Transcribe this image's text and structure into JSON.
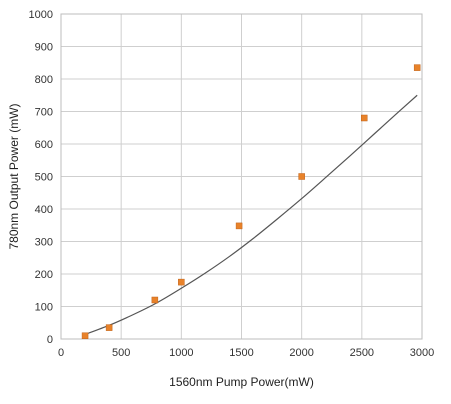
{
  "chart_data": {
    "type": "scatter",
    "title": "",
    "xlabel": "1560nm Pump Power(mW)",
    "ylabel": "780nm Output Power (mW)",
    "xlim": [
      0,
      3000
    ],
    "ylim": [
      0,
      1000
    ],
    "x_ticks": [
      0,
      500,
      1000,
      1500,
      2000,
      2500,
      3000
    ],
    "y_ticks": [
      0,
      100,
      200,
      300,
      400,
      500,
      600,
      700,
      800,
      900,
      1000
    ],
    "grid": true,
    "legend": "none",
    "series": [
      {
        "kind": "points",
        "marker": "square",
        "color": "#e8822a",
        "points": [
          {
            "x": 200,
            "y": 10
          },
          {
            "x": 400,
            "y": 35
          },
          {
            "x": 780,
            "y": 120
          },
          {
            "x": 1000,
            "y": 175
          },
          {
            "x": 1480,
            "y": 348
          },
          {
            "x": 2000,
            "y": 500
          },
          {
            "x": 2520,
            "y": 680
          },
          {
            "x": 2960,
            "y": 835
          }
        ]
      },
      {
        "kind": "fit-line",
        "color": "#555555",
        "points": [
          {
            "x": 200,
            "y": 14
          },
          {
            "x": 400,
            "y": 42
          },
          {
            "x": 600,
            "y": 75
          },
          {
            "x": 800,
            "y": 112
          },
          {
            "x": 1000,
            "y": 156
          },
          {
            "x": 1200,
            "y": 203
          },
          {
            "x": 1400,
            "y": 254
          },
          {
            "x": 1600,
            "y": 310
          },
          {
            "x": 1800,
            "y": 370
          },
          {
            "x": 2000,
            "y": 432
          },
          {
            "x": 2200,
            "y": 497
          },
          {
            "x": 2400,
            "y": 563
          },
          {
            "x": 2600,
            "y": 630
          },
          {
            "x": 2800,
            "y": 697
          },
          {
            "x": 2960,
            "y": 750
          }
        ]
      }
    ]
  }
}
